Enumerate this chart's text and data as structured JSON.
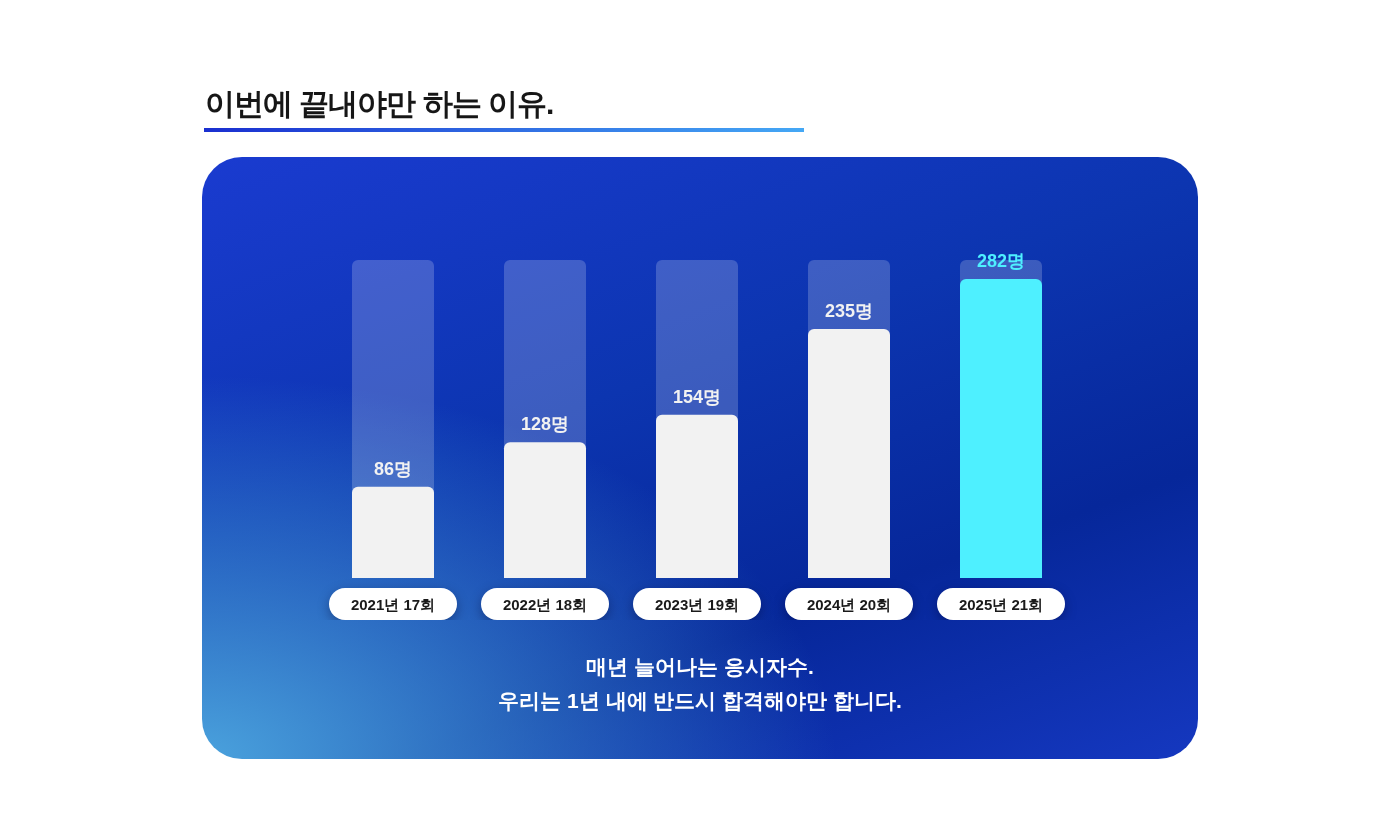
{
  "chart_data": {
    "type": "bar",
    "title": "이번에 끝내야만 하는 이유.",
    "categories": [
      "2021년 17회",
      "2022년 18회",
      "2023년 19회",
      "2024년 20회",
      "2025년 21회"
    ],
    "values": [
      86,
      128,
      154,
      235,
      282
    ],
    "value_labels": [
      "86명",
      "128명",
      "154명",
      "235명",
      "282명"
    ],
    "colors": [
      "#f2f2f2",
      "#f2f2f2",
      "#f2f2f2",
      "#f2f2f2",
      "#4ef0ff"
    ],
    "annotations": [
      "매년 늘어나는 응시자수.",
      "우리는 1년 내에 반드시 합격해야만 합니다."
    ]
  }
}
